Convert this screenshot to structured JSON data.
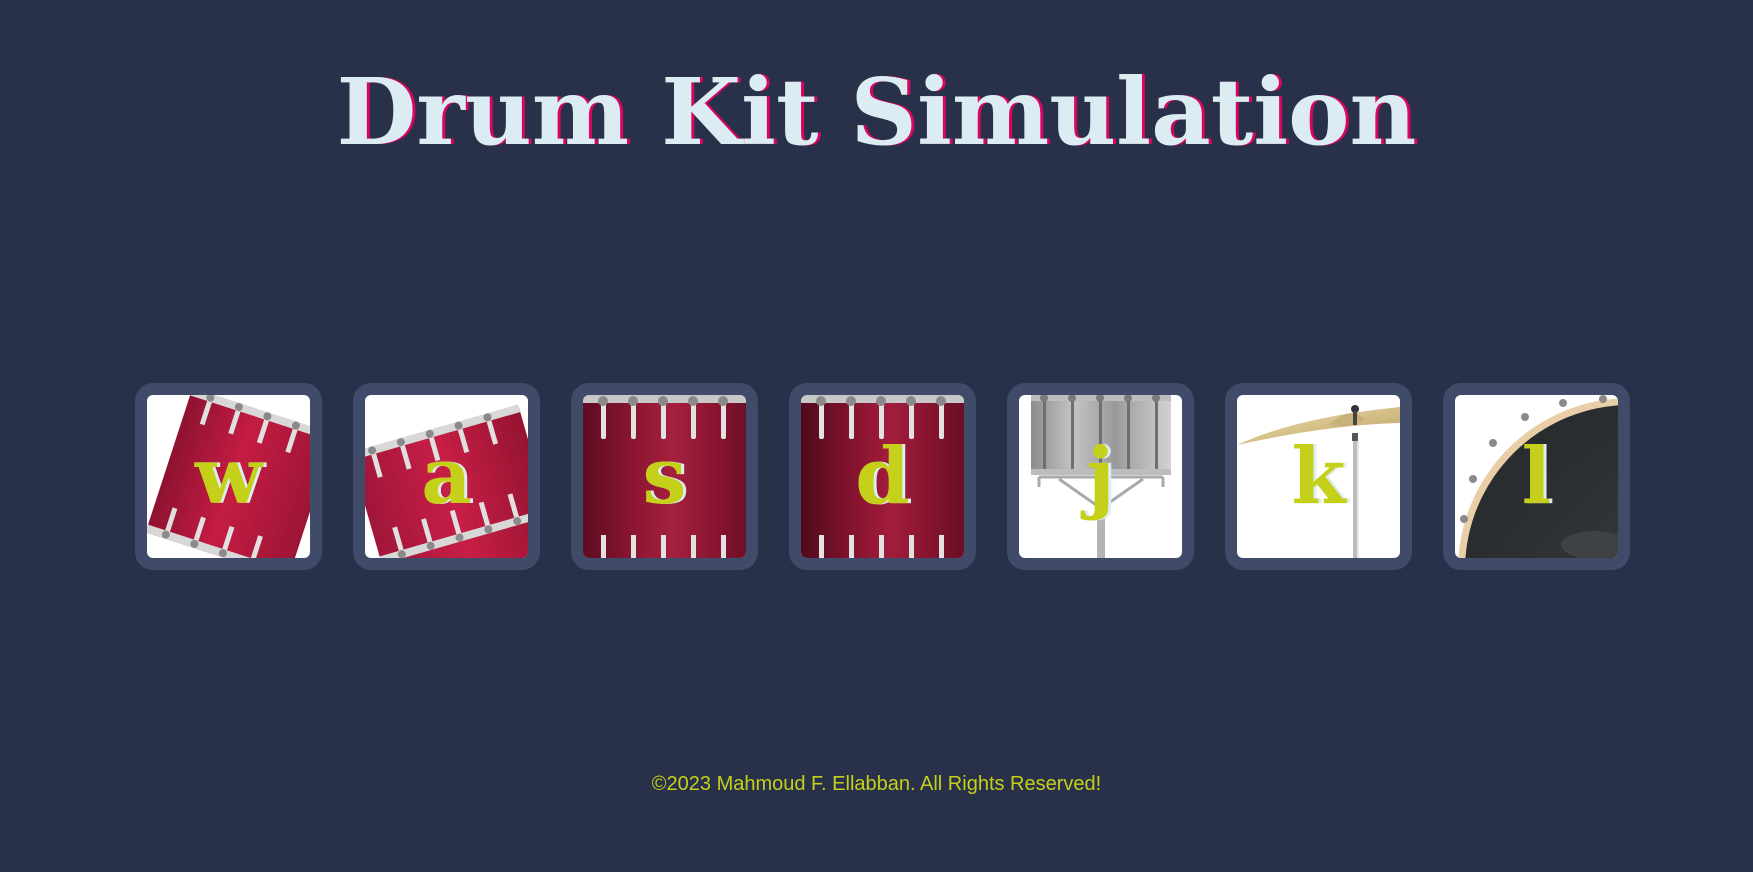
{
  "page": {
    "title": "Drum Kit Simulation",
    "footer": "©2023 Mahmoud F. Ellabban. All Rights Reserved!"
  },
  "colors": {
    "background": "#283149",
    "title_text": "#dbedf3",
    "title_shadow": "#da0463",
    "key_text": "#c5d01a",
    "drum_border": "#404b69",
    "footer_text": "#c5d01a"
  },
  "drums": [
    {
      "key": "w",
      "image": "tom1-drum-icon"
    },
    {
      "key": "a",
      "image": "tom2-drum-icon"
    },
    {
      "key": "s",
      "image": "tom3-drum-icon"
    },
    {
      "key": "d",
      "image": "tom4-drum-icon"
    },
    {
      "key": "j",
      "image": "snare-drum-icon"
    },
    {
      "key": "k",
      "image": "crash-cymbal-icon"
    },
    {
      "key": "l",
      "image": "kick-drum-icon"
    }
  ]
}
